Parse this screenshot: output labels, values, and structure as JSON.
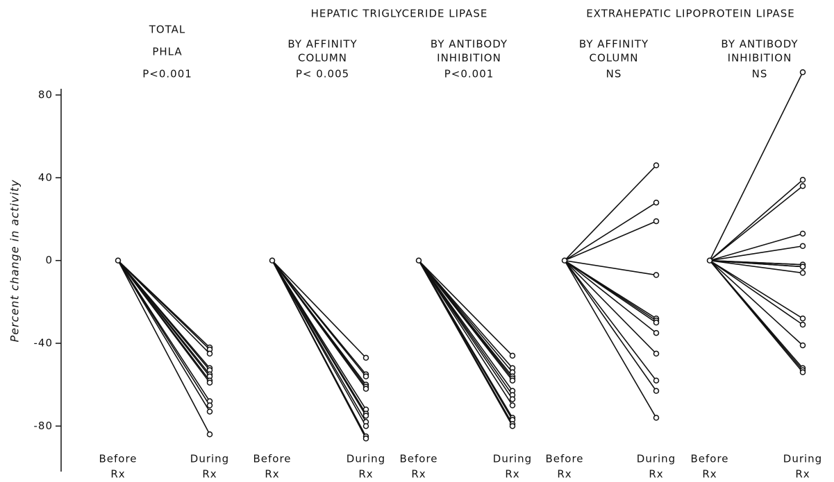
{
  "chart_data": {
    "type": "slope",
    "y_label": "Percent change in activity",
    "ylim": [
      -102,
      83
    ],
    "yticks": [
      -80,
      -40,
      0,
      40,
      80
    ],
    "categories": [
      [
        "Before",
        "Rx"
      ],
      [
        "During",
        "Rx"
      ]
    ],
    "panels": [
      {
        "title": [
          "TOTAL",
          "PHLA",
          "P<0.001"
        ],
        "before": 0,
        "values": [
          -42,
          -43,
          -45,
          -52,
          -53,
          -55,
          -56,
          -58,
          -59,
          -68,
          -70,
          -73,
          -84
        ]
      }
    ],
    "groups": [
      {
        "title": "HEPATIC  TRIGLYCERIDE  LIPASE",
        "panels": [
          {
            "title": [
              "BY  AFFINITY",
              "COLUMN",
              "P< 0.005"
            ],
            "before": 0,
            "values": [
              -47,
              -55,
              -56,
              -60,
              -61,
              -62,
              -72,
              -74,
              -75,
              -78,
              -80,
              -85,
              -86
            ]
          },
          {
            "title": [
              "BY  ANTIBODY",
              "INHIBITION",
              "P<0.001"
            ],
            "before": 0,
            "values": [
              -46,
              -52,
              -54,
              -56,
              -57,
              -58,
              -63,
              -65,
              -67,
              -70,
              -76,
              -77,
              -79,
              -80
            ]
          }
        ]
      },
      {
        "title": "EXTRAHEPATIC  LIPOPROTEIN  LIPASE",
        "panels": [
          {
            "title": [
              "BY  AFFINITY",
              "COLUMN",
              "NS"
            ],
            "before": 0,
            "values": [
              46,
              28,
              19,
              -7,
              -28,
              -29,
              -30,
              -35,
              -45,
              -58,
              -63,
              -76
            ]
          },
          {
            "title": [
              "BY  ANTIBODY",
              "INHIBITION",
              "NS"
            ],
            "before": 0,
            "values": [
              91,
              39,
              36,
              13,
              7,
              -2,
              -2,
              -3,
              -3,
              -6,
              -28,
              -31,
              -41,
              -52,
              -53,
              -54
            ]
          }
        ]
      }
    ]
  }
}
